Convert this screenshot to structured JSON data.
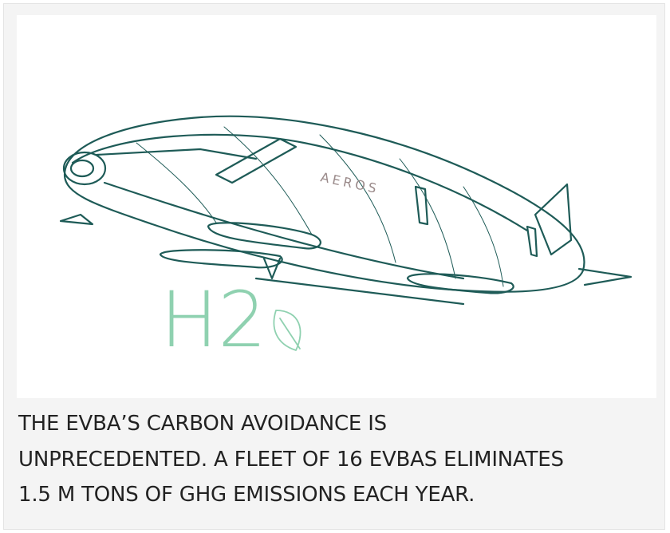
{
  "illustration": {
    "brand": "AEROS",
    "label": "H2"
  },
  "caption": {
    "lines": [
      "THE EVBA’S CARBON AVOIDANCE IS",
      "UNPRECEDENTED. A FLEET OF 16 EVBAS ELIMINATES",
      "1.5 M TONS OF GHG EMISSIONS EACH YEAR."
    ]
  }
}
